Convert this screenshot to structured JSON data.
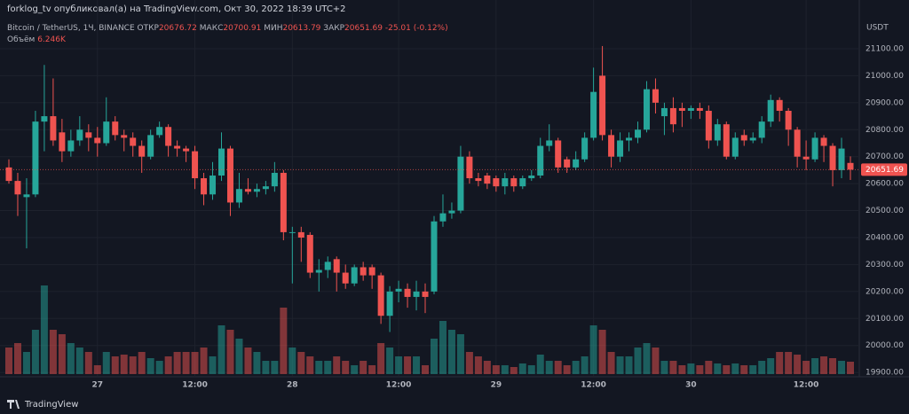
{
  "header": {
    "publisher": "forklog_tv опубликовал(а) на TradingView.com, Окт 30, 2022 18:39 UTC+2"
  },
  "chart_data": {
    "type": "candlestick",
    "title": "Bitcoin / TetherUS, 1Ч, BINANCE",
    "open_label": "ОТКР",
    "high_label": "МАКС",
    "low_label": "МИН",
    "close_label": "ЗАКР",
    "change_label": "-25.01 (-0.12%)",
    "currency": "USDT",
    "brand": "TradingView",
    "up_color": "#26a69a",
    "down_color": "#ef5350",
    "grid": true,
    "categories": [
      null,
      null,
      null,
      null,
      null,
      null,
      null,
      null,
      null,
      null,
      "27",
      null,
      null,
      null,
      null,
      null,
      null,
      null,
      null,
      null,
      null,
      "12:00",
      null,
      null,
      null,
      null,
      null,
      null,
      null,
      null,
      null,
      null,
      "28",
      null,
      null,
      null,
      null,
      null,
      null,
      null,
      null,
      null,
      null,
      null,
      "12:00",
      null,
      null,
      null,
      null,
      null,
      null,
      null,
      null,
      null,
      null,
      "29",
      null,
      null,
      null,
      null,
      null,
      null,
      null,
      null,
      null,
      null,
      "12:00",
      null,
      null,
      null,
      null,
      null,
      null,
      null,
      null,
      null,
      null,
      "30",
      null,
      null,
      null,
      null,
      null,
      null,
      null,
      null,
      null,
      null,
      null,
      null,
      "12:00",
      null,
      null,
      null,
      null,
      null
    ],
    "open": [
      20660,
      20610,
      20550,
      20560,
      20830,
      20850,
      20790,
      20720,
      20760,
      20790,
      20770,
      20750,
      20830,
      20780,
      20770,
      20740,
      20700,
      20780,
      20810,
      20740,
      20730,
      20720,
      20620,
      20560,
      20630,
      20730,
      20530,
      20580,
      20570,
      20580,
      20590,
      20640,
      20420,
      20420,
      20410,
      20270,
      20280,
      20320,
      20270,
      20230,
      20290,
      20290,
      20260,
      20110,
      20200,
      20210,
      20180,
      20200,
      20200,
      20460,
      20490,
      20500,
      20700,
      20620,
      20630,
      20620,
      20590,
      20620,
      20590,
      20620,
      20630,
      20740,
      20760,
      20690,
      20660,
      20690,
      20770,
      21000,
      20780,
      20700,
      20760,
      20770,
      20800,
      20950,
      20850,
      20880,
      20880,
      20870,
      20880,
      20870,
      20760,
      20820,
      20700,
      20780,
      20760,
      20770,
      20830,
      20910,
      20870,
      20800,
      20700,
      20690,
      20770,
      20740,
      20650,
      20676.72
    ],
    "high": [
      20690,
      20640,
      20620,
      20870,
      21040,
      20990,
      20840,
      20800,
      20850,
      20820,
      20810,
      20920,
      20850,
      20800,
      20790,
      20760,
      20800,
      20830,
      20820,
      20760,
      20740,
      20740,
      20640,
      20680,
      20790,
      20740,
      20640,
      20620,
      20600,
      20610,
      20680,
      20650,
      20440,
      20440,
      20420,
      20320,
      20330,
      20330,
      20300,
      20300,
      20310,
      20300,
      20270,
      20220,
      20240,
      20230,
      20240,
      20230,
      20480,
      20560,
      20530,
      20740,
      20720,
      20640,
      20640,
      20630,
      20640,
      20630,
      20630,
      20650,
      20770,
      20820,
      20770,
      20700,
      20720,
      20790,
      21030,
      21110,
      20800,
      20790,
      20790,
      20830,
      20980,
      20990,
      20900,
      20920,
      20900,
      20890,
      20900,
      20890,
      20840,
      20830,
      20790,
      20800,
      20790,
      20850,
      20930,
      20920,
      20880,
      20810,
      20760,
      20790,
      20780,
      20750,
      20770,
      20700.91
    ],
    "low": [
      20600,
      20480,
      20360,
      20550,
      20720,
      20740,
      20680,
      20700,
      20740,
      20720,
      20700,
      20740,
      20760,
      20720,
      20700,
      20640,
      20690,
      20770,
      20700,
      20700,
      20680,
      20580,
      20520,
      20540,
      20610,
      20480,
      20510,
      20560,
      20550,
      20560,
      20570,
      20390,
      20230,
      20310,
      20250,
      20200,
      20250,
      20200,
      20210,
      20220,
      20240,
      20210,
      20080,
      20050,
      20160,
      20140,
      20130,
      20120,
      20190,
      20440,
      20470,
      20490,
      20600,
      20590,
      20580,
      20570,
      20560,
      20570,
      20580,
      20610,
      20620,
      20720,
      20640,
      20640,
      20650,
      20680,
      20760,
      20760,
      20660,
      20680,
      20720,
      20750,
      20790,
      20860,
      20780,
      20790,
      20810,
      20840,
      20840,
      20730,
      20740,
      20690,
      20690,
      20740,
      20750,
      20750,
      20810,
      20830,
      20740,
      20660,
      20650,
      20680,
      20680,
      20590,
      20620,
      20613.79
    ],
    "close": [
      20610,
      20560,
      20560,
      20830,
      20850,
      20760,
      20720,
      20760,
      20800,
      20770,
      20750,
      20830,
      20780,
      20770,
      20740,
      20700,
      20780,
      20810,
      20740,
      20730,
      20720,
      20620,
      20560,
      20630,
      20730,
      20530,
      20580,
      20570,
      20580,
      20590,
      20640,
      20420,
      20420,
      20400,
      20270,
      20280,
      20310,
      20270,
      20230,
      20290,
      20260,
      20260,
      20110,
      20200,
      20210,
      20180,
      20200,
      20180,
      20460,
      20490,
      20500,
      20700,
      20620,
      20610,
      20600,
      20590,
      20620,
      20590,
      20620,
      20630,
      20740,
      20760,
      20660,
      20660,
      20690,
      20770,
      20940,
      20780,
      20700,
      20760,
      20770,
      20800,
      20950,
      20900,
      20880,
      20820,
      20870,
      20880,
      20870,
      20760,
      20820,
      20700,
      20770,
      20760,
      20770,
      20830,
      20910,
      20870,
      20800,
      20700,
      20690,
      20770,
      20740,
      20650,
      20730,
      20651.69
    ],
    "volume": {
      "name": "Объём",
      "last_value_label": "6.246K",
      "values": [
        13380,
        15610,
        11150,
        22300,
        44600,
        22300,
        20070,
        15610,
        13380,
        11150,
        4460,
        11150,
        8920,
        9810,
        8920,
        11150,
        8030,
        6690,
        8920,
        11150,
        11150,
        11150,
        13380,
        8920,
        24530,
        22300,
        17840,
        13380,
        11150,
        6690,
        6690,
        33450,
        13380,
        11150,
        8920,
        6690,
        6690,
        8920,
        6690,
        4460,
        6690,
        4460,
        15610,
        13380,
        8920,
        8920,
        8920,
        4460,
        17840,
        26760,
        22300,
        20070,
        11150,
        8920,
        6690,
        4460,
        4460,
        3570,
        5350,
        4460,
        9810,
        6690,
        6690,
        4460,
        6690,
        8920,
        24530,
        22300,
        11150,
        8920,
        8920,
        13380,
        15610,
        13380,
        6690,
        6690,
        4460,
        5350,
        4460,
        6690,
        5350,
        4460,
        5350,
        4460,
        4460,
        6690,
        8030,
        11150,
        11150,
        9810,
        6690,
        8030,
        8920,
        8030,
        6690,
        6246
      ]
    },
    "ylim": [
      19884,
      21215
    ],
    "yticks": [
      {
        "value": 19900,
        "label": "19900.00"
      },
      {
        "value": 20000,
        "label": "20000.00"
      },
      {
        "value": 20100,
        "label": "20100.00"
      },
      {
        "value": 20200,
        "label": "20200.00"
      },
      {
        "value": 20300,
        "label": "20300.00"
      },
      {
        "value": 20400,
        "label": "20400.00"
      },
      {
        "value": 20500,
        "label": "20500.00"
      },
      {
        "value": 20600,
        "label": "20600.00"
      },
      {
        "value": 20700,
        "label": "20700.00"
      },
      {
        "value": 20800,
        "label": "20800.00"
      },
      {
        "value": 20900,
        "label": "20900.00"
      },
      {
        "value": 21000,
        "label": "21000.00"
      },
      {
        "value": 21100,
        "label": "21100.00"
      }
    ]
  }
}
